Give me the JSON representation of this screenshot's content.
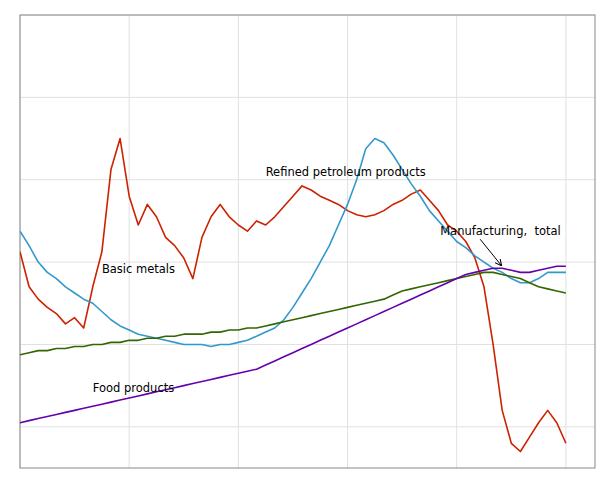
{
  "chart_data": {
    "type": "line",
    "x": [
      2000,
      2000.25,
      2000.5,
      2000.75,
      2001,
      2001.25,
      2001.5,
      2001.75,
      2002,
      2002.25,
      2002.5,
      2002.75,
      2003,
      2003.25,
      2003.5,
      2003.75,
      2004,
      2004.25,
      2004.5,
      2004.75,
      2005,
      2005.25,
      2005.5,
      2005.75,
      2006,
      2006.25,
      2006.5,
      2006.75,
      2007,
      2007.25,
      2007.5,
      2007.75,
      2008,
      2008.25,
      2008.5,
      2008.75,
      2009,
      2009.25,
      2009.5,
      2009.75,
      2010,
      2010.25,
      2010.5,
      2010.75,
      2011,
      2011.25,
      2011.5,
      2011.75,
      2012,
      2012.25,
      2012.5,
      2012.75,
      2013,
      2013.25,
      2013.5,
      2013.75,
      2014,
      2014.25,
      2014.5,
      2014.75,
      2015
    ],
    "series": [
      {
        "name": "Refined petroleum products",
        "color": "#cc2200",
        "values": [
          165,
          148,
          142,
          138,
          135,
          130,
          133,
          128,
          148,
          165,
          205,
          220,
          192,
          178,
          188,
          182,
          172,
          168,
          162,
          152,
          172,
          182,
          188,
          182,
          178,
          175,
          180,
          178,
          182,
          187,
          192,
          197,
          195,
          192,
          190,
          188,
          185,
          183,
          182,
          183,
          185,
          188,
          190,
          193,
          195,
          190,
          185,
          178,
          175,
          170,
          162,
          148,
          120,
          88,
          72,
          68,
          75,
          82,
          88,
          82,
          72
        ]
      },
      {
        "name": "Basic metals",
        "color": "#3399cc",
        "values": [
          175,
          168,
          160,
          155,
          152,
          148,
          145,
          142,
          140,
          136,
          132,
          129,
          127,
          125,
          124,
          123,
          122,
          121,
          120,
          120,
          120,
          119,
          120,
          120,
          121,
          122,
          124,
          126,
          128,
          132,
          138,
          145,
          152,
          160,
          168,
          178,
          188,
          200,
          215,
          220,
          218,
          212,
          205,
          198,
          192,
          185,
          180,
          175,
          170,
          167,
          163,
          160,
          157,
          155,
          152,
          150,
          150,
          152,
          155,
          155,
          155
        ]
      },
      {
        "name": "Food products",
        "color": "#336600",
        "values": [
          115,
          116,
          117,
          117,
          118,
          118,
          119,
          119,
          120,
          120,
          121,
          121,
          122,
          122,
          123,
          123,
          124,
          124,
          125,
          125,
          125,
          126,
          126,
          127,
          127,
          128,
          128,
          129,
          130,
          131,
          132,
          133,
          134,
          135,
          136,
          137,
          138,
          139,
          140,
          141,
          142,
          144,
          146,
          147,
          148,
          149,
          150,
          151,
          152,
          153,
          154,
          155,
          155,
          154,
          153,
          152,
          150,
          148,
          147,
          146,
          145
        ]
      },
      {
        "name": "Manufacturing,  total",
        "color": "#6600aa",
        "values": [
          82,
          83,
          84,
          85,
          86,
          87,
          88,
          89,
          90,
          91,
          92,
          93,
          94,
          95,
          96,
          97,
          98,
          99,
          100,
          101,
          102,
          103,
          104,
          105,
          106,
          107,
          108,
          110,
          112,
          114,
          116,
          118,
          120,
          122,
          124,
          126,
          128,
          130,
          132,
          134,
          136,
          138,
          140,
          142,
          144,
          146,
          148,
          150,
          152,
          154,
          155,
          156,
          157,
          157,
          156,
          155,
          155,
          156,
          157,
          158,
          158
        ]
      }
    ],
    "xlim": [
      2000,
      2015.8
    ],
    "ylim": [
      60,
      280
    ],
    "xticks": [
      2000,
      2003,
      2006,
      2009,
      2012,
      2015
    ],
    "yticks": [
      80,
      120,
      160,
      200,
      240,
      280
    ],
    "grid": true,
    "tick_labels": false
  }
}
